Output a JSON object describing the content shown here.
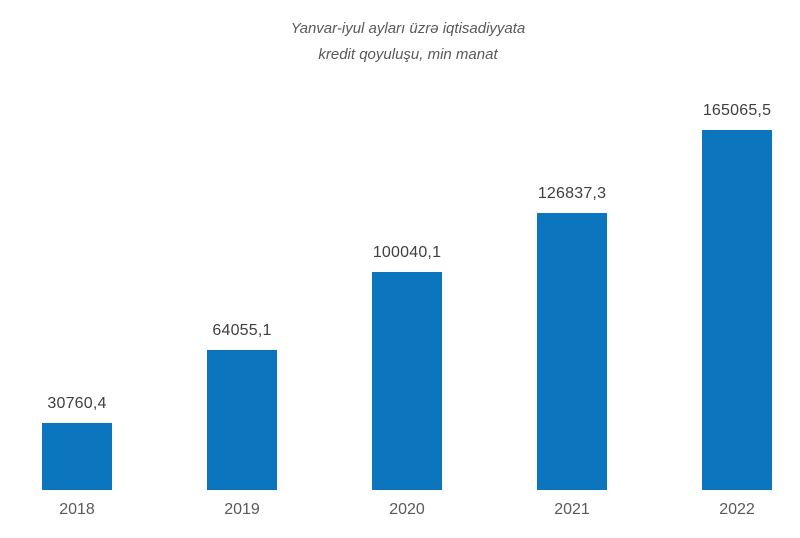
{
  "chart_data": {
    "type": "bar",
    "title": "Yanvar-iyul ayları üzrə iqtisadiyyata kredit qoyuluşu, min manat",
    "title_lines": [
      "Yanvar-iyul ayları üzrə iqtisadiyyata",
      "kredit qoyuluşu, min manat"
    ],
    "categories": [
      "2018",
      "2019",
      "2020",
      "2021",
      "2022"
    ],
    "values": [
      30760.4,
      64055.1,
      100040.1,
      126837.3,
      165065.5
    ],
    "value_labels": [
      "30760,4",
      "64055,1",
      "100040,1",
      "126837,3",
      "165065,5"
    ],
    "series_name": "kredit qoyuluşu, min manat",
    "xlabel": "",
    "ylabel": "",
    "ylim": [
      0,
      180000
    ],
    "grid": false,
    "legend": "none",
    "axis_lines": "none",
    "bar_color": "#0b76bd",
    "value_label_color": "#3f3f3f",
    "category_label_color": "#595959",
    "title_color": "#595959",
    "background_color": "#ffffff"
  }
}
